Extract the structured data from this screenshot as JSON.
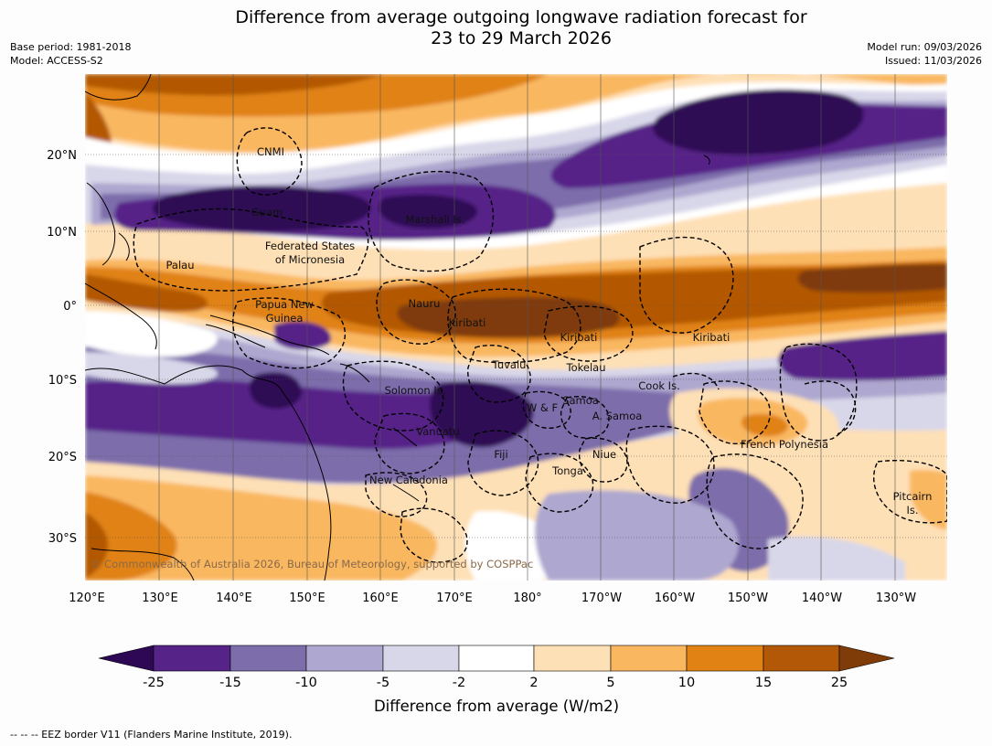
{
  "title": {
    "line1": "Difference from average outgoing longwave radiation forecast for",
    "line2": "23 to 29 March 2026"
  },
  "meta": {
    "base_period": "Base period: 1981-2018",
    "model": "Model: ACCESS-S2",
    "model_run": "Model run: 09/03/2026",
    "issued": "Issued: 11/03/2026"
  },
  "map": {
    "lon_labels": [
      "120°E",
      "130°E",
      "140°E",
      "150°E",
      "160°E",
      "170°E",
      "180°",
      "170°W",
      "160°W",
      "150°W",
      "140°W",
      "130°W"
    ],
    "lat_labels": [
      "20°N",
      "10°N",
      "0°",
      "10°S",
      "20°S",
      "30°S"
    ],
    "regions": [
      "CNMI",
      "Guam",
      "Marshall Is.",
      "Federated States",
      "of Micronesia",
      "Palau",
      "Papua New",
      "Guinea",
      "Nauru",
      "Kiribati",
      "Kiribati",
      "Kiribati",
      "Tuvalu",
      "Tokelau",
      "Cook Is.",
      "Solomon Is.",
      "W & F",
      "Samoa",
      "A. Samoa",
      "Vanuatu",
      "Fiji",
      "Niue",
      "Tonga",
      "French Polynesia",
      "New Caledonia",
      "Pitcairn",
      "Is."
    ],
    "copyright": "© Commonwealth of Australia 2026, Bureau of Meteorology, supported by COSPPac"
  },
  "colorbar": {
    "colors": [
      "#2e0854",
      "#562388",
      "#7d6dab",
      "#aea7cf",
      "#d8d7e9",
      "#ffffff",
      "#fee0b6",
      "#f9b760",
      "#e08214",
      "#b35806",
      "#7f3b08"
    ],
    "ticks": [
      "-25",
      "-15",
      "-10",
      "-5",
      "-2",
      "2",
      "5",
      "10",
      "15",
      "25"
    ],
    "label": "Difference from average (W/m2)"
  },
  "footnote": "--  --  -- EEZ border V11 (Flanders Marine Institute, 2019)."
}
